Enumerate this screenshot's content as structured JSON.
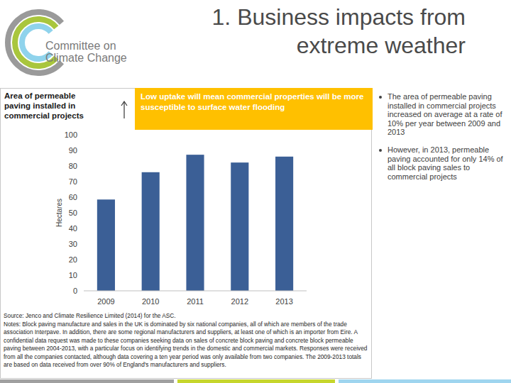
{
  "logo": {
    "lines": [
      "Committee on",
      "Climate Change"
    ]
  },
  "header": {
    "title_lines": [
      "1. Business impacts from",
      "extreme weather"
    ]
  },
  "chart_data": {
    "type": "bar",
    "title": "Area of permeable paving installed in commercial projects",
    "y_label": "Hectares",
    "annotations": [
      "Low uptake will mean commercial properties will be more susceptible to surface water flooding"
    ],
    "categories": [
      "2009",
      "2010",
      "2011",
      "2012",
      "2013"
    ],
    "values": [
      58.5,
      76,
      87.2,
      82.2,
      86
    ],
    "color": "#3b5f96",
    "ylim": [
      0,
      100
    ],
    "yticks": [
      0,
      10,
      20,
      30,
      40,
      50,
      60,
      70,
      80,
      90,
      100
    ],
    "grid": false
  },
  "source": "Source: Jenco and Climate Resilience Limited (2014) for the ASC.",
  "notes": "Notes: Block paving manufacture and sales in the UK is dominated by six national companies, all of which are members of the trade association Interpave. In addition, there are some regional manufacturers and suppliers, at least one of which is an importer from Eire. A confidential data request was made to these companies seeking data on sales of concrete block paving and concrete block permeable paving between 2004-2013, with a particular focus on identifying trends in the domestic and commercial markets. Responses were received from all the companies contacted, although data covering a ten year period was only available from two companies. The 2009-2013 totals are based on data received from over 90% of England's manufacturers and suppliers.",
  "bullets": [
    "The area of permeable paving installed in commercial projects increased on average at a rate of 10% per year between 2009 and 2013",
    "However, in 2013, permeable paving accounted for only 14% of all block paving sales to commercial projects"
  ]
}
